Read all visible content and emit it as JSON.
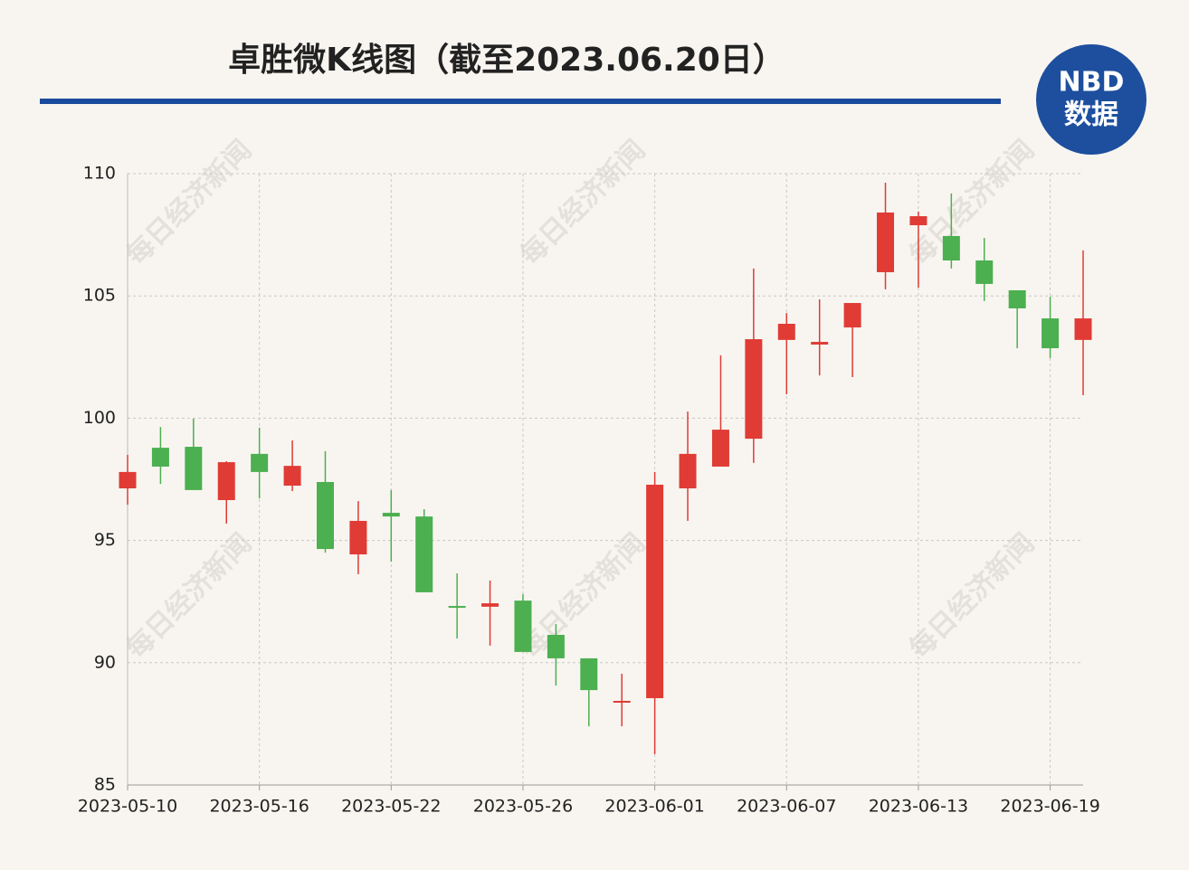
{
  "chart_data": {
    "type": "candlestick",
    "title": "卓胜微K线图（截至2023.06.20日）",
    "logo": {
      "line1": "NBD",
      "line2": "数据"
    },
    "watermark": "每日经济新闻",
    "categories": [
      "2023-05-10",
      null,
      null,
      null,
      "2023-05-16",
      null,
      null,
      null,
      "2023-05-22",
      null,
      null,
      null,
      "2023-05-26",
      null,
      null,
      null,
      "2023-06-01",
      null,
      null,
      null,
      "2023-06-07",
      null,
      null,
      null,
      "2023-06-13",
      null,
      null,
      null,
      "2023-06-19",
      null
    ],
    "open": [
      97.13,
      98.79,
      98.83,
      96.65,
      98.54,
      97.24,
      97.39,
      94.43,
      96.13,
      95.98,
      92.32,
      92.29,
      92.54,
      91.14,
      90.18,
      88.37,
      88.55,
      97.13,
      98.02,
      99.16,
      103.2,
      103.01,
      103.71,
      105.97,
      107.89,
      107.45,
      106.45,
      105.23,
      104.08,
      103.2
    ],
    "high": [
      98.5,
      99.64,
      99.98,
      98.24,
      99.61,
      99.09,
      98.65,
      96.61,
      97.06,
      96.28,
      93.65,
      93.36,
      92.8,
      91.58,
      90.18,
      89.55,
      97.8,
      100.27,
      102.57,
      106.12,
      104.3,
      104.86,
      104.71,
      109.63,
      108.45,
      109.19,
      107.37,
      105.23,
      104.97,
      106.86
    ],
    "low": [
      96.46,
      97.31,
      97.06,
      95.69,
      96.72,
      97.02,
      94.5,
      93.62,
      94.13,
      92.88,
      90.99,
      90.7,
      90.44,
      89.07,
      87.4,
      87.4,
      86.26,
      95.8,
      98.02,
      98.17,
      100.98,
      101.75,
      101.68,
      105.27,
      105.34,
      106.12,
      104.79,
      102.86,
      102.46,
      100.94
    ],
    "close": [
      97.8,
      98.02,
      97.06,
      98.2,
      97.8,
      98.05,
      94.65,
      95.8,
      95.98,
      92.88,
      92.29,
      92.43,
      90.44,
      90.18,
      88.88,
      88.44,
      97.28,
      98.54,
      99.53,
      103.23,
      103.86,
      103.12,
      104.71,
      108.41,
      108.26,
      106.45,
      105.49,
      104.49,
      102.86,
      104.08
    ],
    "up_color": "#e03b35",
    "down_color": "#4caf50",
    "ylim": [
      85,
      110
    ],
    "yticks": [
      85,
      90,
      95,
      100,
      105,
      110
    ],
    "grid": true
  }
}
